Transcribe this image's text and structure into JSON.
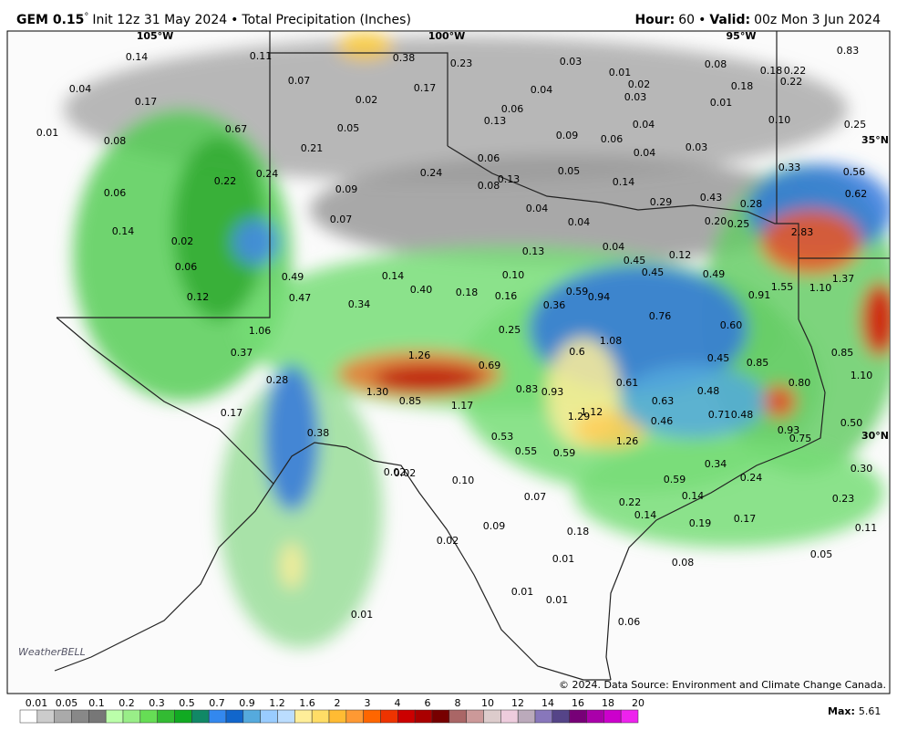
{
  "header": {
    "model": "GEM 0.15",
    "degree": "°",
    "init": "Init 12z 31 May 2024",
    "separator": "•",
    "product": "Total Precipitation (Inches)",
    "hour_label": "Hour:",
    "hour": "60",
    "valid_label": "Valid:",
    "valid": "00z Mon 3 Jun 2024"
  },
  "map": {
    "lon_labels": [
      "105°W",
      "100°W",
      "95°W"
    ],
    "lat_labels": [
      "35°N",
      "30°N"
    ],
    "point_values": [
      "0.14",
      "0.11",
      "0.38",
      "0.23",
      "0.03",
      "0.01",
      "0.08",
      "0.18",
      "0.22",
      "0.83",
      "0.04",
      "0.07",
      "0.17",
      "0.02",
      "0.04",
      "0.18",
      "0.22",
      "0.17",
      "0.02",
      "0.06",
      "0.03",
      "0.01",
      "0.13",
      "0.04",
      "0.10",
      "0.25",
      "0.01",
      "0.08",
      "0.67",
      "0.05",
      "0.09",
      "0.06",
      "0.03",
      "0.21",
      "0.04",
      "0.06",
      "0.05",
      "0.33",
      "0.56",
      "0.24",
      "0.24",
      "0.13",
      "0.14",
      "0.22",
      "0.06",
      "0.09",
      "0.08",
      "0.62",
      "0.43",
      "0.29",
      "0.28",
      "0.04",
      "0.07",
      "0.04",
      "0.20",
      "0.25",
      "2.83",
      "0.14",
      "0.02",
      "0.04",
      "0.13",
      "0.12",
      "0.45",
      "0.06",
      "0.45",
      "0.49",
      "0.49",
      "0.14",
      "0.40",
      "0.18",
      "0.10",
      "1.37",
      "1.55",
      "1.10",
      "0.12",
      "0.47",
      "0.16",
      "0.59",
      "0.94",
      "0.91",
      "0.34",
      "0.36",
      "0.76",
      "1.06",
      "0.60",
      "0.25",
      "1.08",
      "0.37",
      "1.26",
      "0.6",
      "0.85",
      "0.45",
      "0.85",
      "0.69",
      "1.10",
      "0.28",
      "0.61",
      "0.80",
      "1.30",
      "0.83",
      "0.93",
      "0.48",
      "0.85",
      "0.63",
      "1.17",
      "0.17",
      "1.29",
      "1.12",
      "0.71",
      "0.48",
      "0.46",
      "0.50",
      "0.93",
      "0.75",
      "0.38",
      "0.53",
      "1.26",
      "0.55",
      "0.59",
      "0.34",
      "0.30",
      "0.02",
      "0.02",
      "0.10",
      "0.59",
      "0.24",
      "0.07",
      "0.14",
      "0.23",
      "0.22",
      "0.14",
      "0.19",
      "0.17",
      "0.09",
      "0.11",
      "0.18",
      "0.02",
      "0.05",
      "0.01",
      "0.08",
      "0.01",
      "0.01",
      "0.01",
      "0.06"
    ],
    "copyright": "© 2024. Data Source: Environment and Climate Change Canada.",
    "logo": "WeatherBELL"
  },
  "legend": {
    "ticks": [
      "0.01",
      "0.05",
      "0.1",
      "0.2",
      "0.3",
      "0.5",
      "0.7",
      "0.9",
      "1.2",
      "1.6",
      "2",
      "3",
      "4",
      "6",
      "8",
      "10",
      "12",
      "14",
      "16",
      "18",
      "20"
    ]
  },
  "max": {
    "label": "Max:",
    "value": "5.61"
  }
}
